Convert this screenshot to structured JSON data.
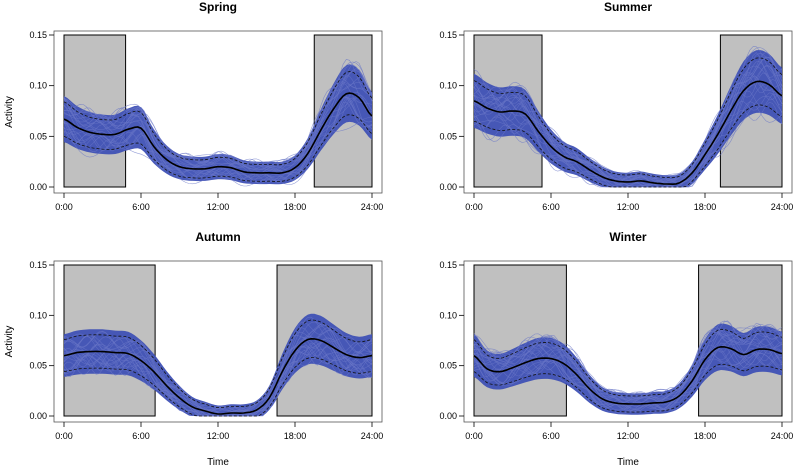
{
  "chart_data": [
    {
      "type": "line",
      "title": "Spring",
      "xlabel": "",
      "ylabel": "Activity",
      "xlim": [
        0,
        24
      ],
      "ylim": [
        0,
        0.15
      ],
      "x_ticks": [
        "0:00",
        "6:00",
        "12:00",
        "18:00",
        "24:00"
      ],
      "y_ticks": [
        "0.00",
        "0.05",
        "0.10",
        "0.15"
      ],
      "night_shading": [
        [
          0,
          4.8
        ],
        [
          19.5,
          24
        ]
      ],
      "x": [
        0,
        1,
        2,
        3,
        4,
        5,
        6,
        7,
        8,
        9,
        10,
        11,
        12,
        13,
        14,
        15,
        16,
        17,
        18,
        19,
        20,
        21,
        22,
        23,
        24
      ],
      "series": [
        {
          "name": "mean",
          "values": [
            0.067,
            0.059,
            0.054,
            0.052,
            0.052,
            0.057,
            0.058,
            0.04,
            0.027,
            0.02,
            0.018,
            0.018,
            0.02,
            0.019,
            0.015,
            0.014,
            0.014,
            0.014,
            0.019,
            0.033,
            0.056,
            0.077,
            0.092,
            0.088,
            0.07
          ]
        }
      ]
    },
    {
      "type": "line",
      "title": "Summer",
      "xlabel": "",
      "ylabel": "",
      "xlim": [
        0,
        24
      ],
      "ylim": [
        0,
        0.15
      ],
      "x_ticks": [
        "0:00",
        "6:00",
        "12:00",
        "18:00",
        "24:00"
      ],
      "y_ticks": [
        "0.00",
        "0.05",
        "0.10",
        "0.15"
      ],
      "night_shading": [
        [
          0,
          5.3
        ],
        [
          19.2,
          24
        ]
      ],
      "x": [
        0,
        1,
        2,
        3,
        4,
        5,
        6,
        7,
        8,
        9,
        10,
        11,
        12,
        13,
        14,
        15,
        16,
        17,
        18,
        19,
        20,
        21,
        22,
        23,
        24
      ],
      "series": [
        {
          "name": "mean",
          "values": [
            0.085,
            0.078,
            0.074,
            0.075,
            0.072,
            0.055,
            0.04,
            0.03,
            0.025,
            0.017,
            0.01,
            0.006,
            0.005,
            0.006,
            0.004,
            0.003,
            0.004,
            0.014,
            0.032,
            0.052,
            0.075,
            0.095,
            0.104,
            0.101,
            0.09
          ]
        }
      ]
    },
    {
      "type": "line",
      "title": "Autumn",
      "xlabel": "Time",
      "ylabel": "Activity",
      "xlim": [
        0,
        24
      ],
      "ylim": [
        0,
        0.15
      ],
      "x_ticks": [
        "0:00",
        "6:00",
        "12:00",
        "18:00",
        "24:00"
      ],
      "y_ticks": [
        "0.00",
        "0.05",
        "0.10",
        "0.15"
      ],
      "night_shading": [
        [
          0,
          7.1
        ],
        [
          16.6,
          24
        ]
      ],
      "x": [
        0,
        1,
        2,
        3,
        4,
        5,
        6,
        7,
        8,
        9,
        10,
        11,
        12,
        13,
        14,
        15,
        16,
        17,
        18,
        19,
        20,
        21,
        22,
        23,
        24
      ],
      "series": [
        {
          "name": "mean",
          "values": [
            0.06,
            0.063,
            0.064,
            0.064,
            0.063,
            0.062,
            0.055,
            0.044,
            0.03,
            0.018,
            0.009,
            0.005,
            0.002,
            0.003,
            0.003,
            0.006,
            0.018,
            0.044,
            0.065,
            0.076,
            0.075,
            0.068,
            0.061,
            0.058,
            0.06
          ]
        }
      ]
    },
    {
      "type": "line",
      "title": "Winter",
      "xlabel": "Time",
      "ylabel": "",
      "xlim": [
        0,
        24
      ],
      "ylim": [
        0,
        0.15
      ],
      "x_ticks": [
        "0:00",
        "6:00",
        "12:00",
        "18:00",
        "24:00"
      ],
      "y_ticks": [
        "0.00",
        "0.05",
        "0.10",
        "0.15"
      ],
      "night_shading": [
        [
          0,
          7.2
        ],
        [
          17.5,
          24
        ]
      ],
      "x": [
        0,
        1,
        2,
        3,
        4,
        5,
        6,
        7,
        8,
        9,
        10,
        11,
        12,
        13,
        14,
        15,
        16,
        17,
        18,
        19,
        20,
        21,
        22,
        23,
        24
      ],
      "series": [
        {
          "name": "mean",
          "values": [
            0.06,
            0.047,
            0.044,
            0.048,
            0.053,
            0.057,
            0.057,
            0.052,
            0.041,
            0.027,
            0.017,
            0.013,
            0.012,
            0.012,
            0.013,
            0.014,
            0.02,
            0.035,
            0.056,
            0.068,
            0.067,
            0.061,
            0.066,
            0.066,
            0.062
          ]
        }
      ]
    }
  ],
  "colors": {
    "envelope": "#3f51b5",
    "individual_lines": "#6a76c8",
    "mean_line": "#000000",
    "night_shading": "#c0c0c0"
  }
}
